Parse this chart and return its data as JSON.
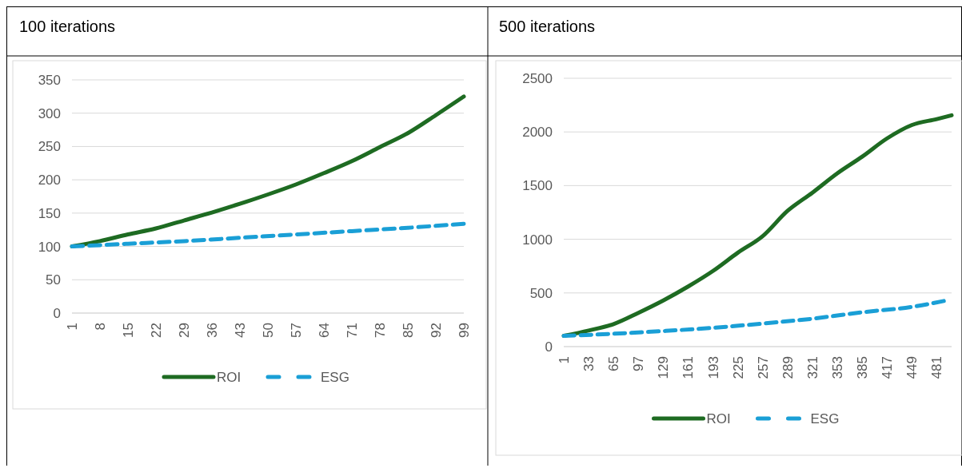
{
  "chart_data": [
    {
      "type": "line",
      "title": "100 iterations",
      "xlim": [
        1,
        99
      ],
      "xticks": [
        1,
        8,
        15,
        22,
        29,
        36,
        43,
        50,
        57,
        64,
        71,
        78,
        85,
        92,
        99
      ],
      "ylim": [
        0,
        350
      ],
      "yticks": [
        0,
        50,
        100,
        150,
        200,
        250,
        300,
        350
      ],
      "grid": "y",
      "legend": "bottom",
      "series": [
        {
          "name": "ROI",
          "color": "#1e6b22",
          "line_style": "solid",
          "x": [
            1,
            8,
            15,
            22,
            29,
            36,
            43,
            50,
            57,
            64,
            71,
            78,
            85,
            92,
            99
          ],
          "values": [
            100,
            108,
            118,
            127,
            139,
            151,
            164,
            178,
            193,
            210,
            228,
            249,
            270,
            297,
            325
          ]
        },
        {
          "name": "ESG",
          "color": "#1a9fd6",
          "line_style": "dashed",
          "x": [
            1,
            15,
            29,
            43,
            57,
            71,
            85,
            99
          ],
          "values": [
            100,
            104,
            108,
            113,
            118,
            123,
            128,
            134
          ]
        }
      ]
    },
    {
      "type": "line",
      "title": "500 iterations",
      "xlim": [
        1,
        500
      ],
      "xticks": [
        1,
        33,
        65,
        97,
        129,
        161,
        193,
        225,
        257,
        289,
        321,
        353,
        385,
        417,
        449,
        481
      ],
      "ylim": [
        0,
        2500
      ],
      "yticks": [
        0,
        500,
        1000,
        1500,
        2000,
        2500
      ],
      "grid": "y",
      "legend": "bottom",
      "series": [
        {
          "name": "ROI",
          "color": "#1e6b22",
          "line_style": "solid",
          "x": [
            1,
            33,
            65,
            97,
            129,
            161,
            193,
            225,
            257,
            289,
            321,
            353,
            385,
            417,
            449,
            481,
            500
          ],
          "values": [
            100,
            150,
            210,
            315,
            430,
            560,
            705,
            875,
            1030,
            1265,
            1435,
            1615,
            1770,
            1940,
            2065,
            2120,
            2155
          ]
        },
        {
          "name": "ESG",
          "color": "#1a9fd6",
          "line_style": "dashed",
          "x": [
            1,
            65,
            129,
            193,
            257,
            321,
            385,
            449,
            490
          ],
          "values": [
            100,
            120,
            145,
            175,
            215,
            260,
            320,
            370,
            425
          ]
        }
      ]
    }
  ]
}
